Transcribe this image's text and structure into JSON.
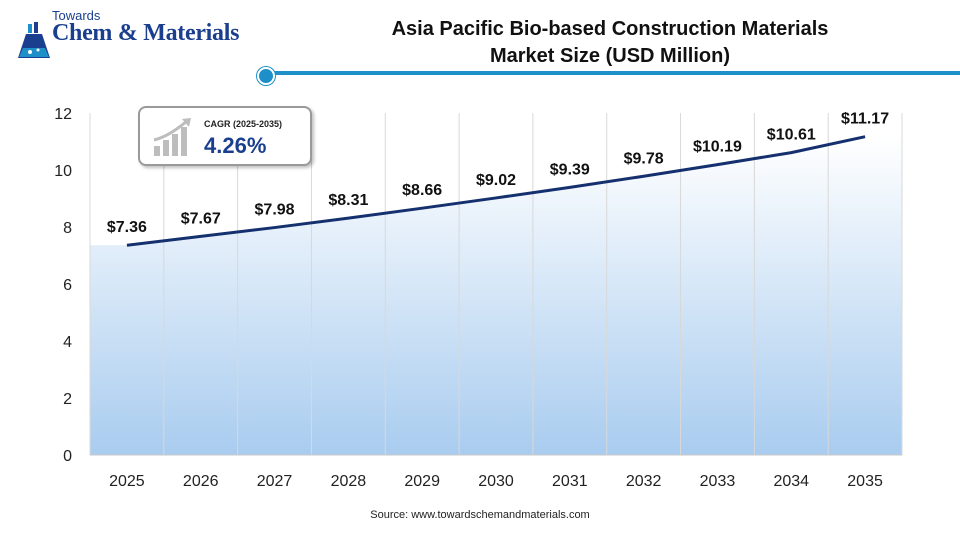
{
  "logo": {
    "top_text": "Towards",
    "brand_text": "Chem & Materials"
  },
  "header": {
    "title_line1": "Asia Pacific Bio-based Construction Materials",
    "title_line2": "Market Size (USD Million)",
    "accent_color": "#1e90c9"
  },
  "cagr": {
    "label": "CAGR (2025-2035)",
    "value": "4.26%"
  },
  "source": "Source: www.towardschemandmaterials.com",
  "chart_data": {
    "type": "line",
    "title": "Asia Pacific Bio-based Construction Materials Market Size (USD Million)",
    "categories": [
      "2025",
      "2026",
      "2027",
      "2028",
      "2029",
      "2030",
      "2031",
      "2032",
      "2033",
      "2034",
      "2035"
    ],
    "series": [
      {
        "values": [
          7.36,
          7.67,
          7.98,
          8.31,
          8.66,
          9.02,
          9.39,
          9.78,
          10.19,
          10.61,
          11.17
        ]
      }
    ],
    "data_labels": [
      "$7.36",
      "$7.67",
      "$7.98",
      "$8.31",
      "$8.66",
      "$9.02",
      "$9.39",
      "$9.78",
      "$10.19",
      "$10.61",
      "$11.17"
    ],
    "yticks": [
      "0",
      "2",
      "4",
      "6",
      "8",
      "10",
      "12"
    ],
    "ylim": [
      0,
      12
    ],
    "grid": "vertical",
    "line_color": "#15306e",
    "area_gradient_top": "#ffffff",
    "area_gradient_bottom": "#a9ccef"
  }
}
